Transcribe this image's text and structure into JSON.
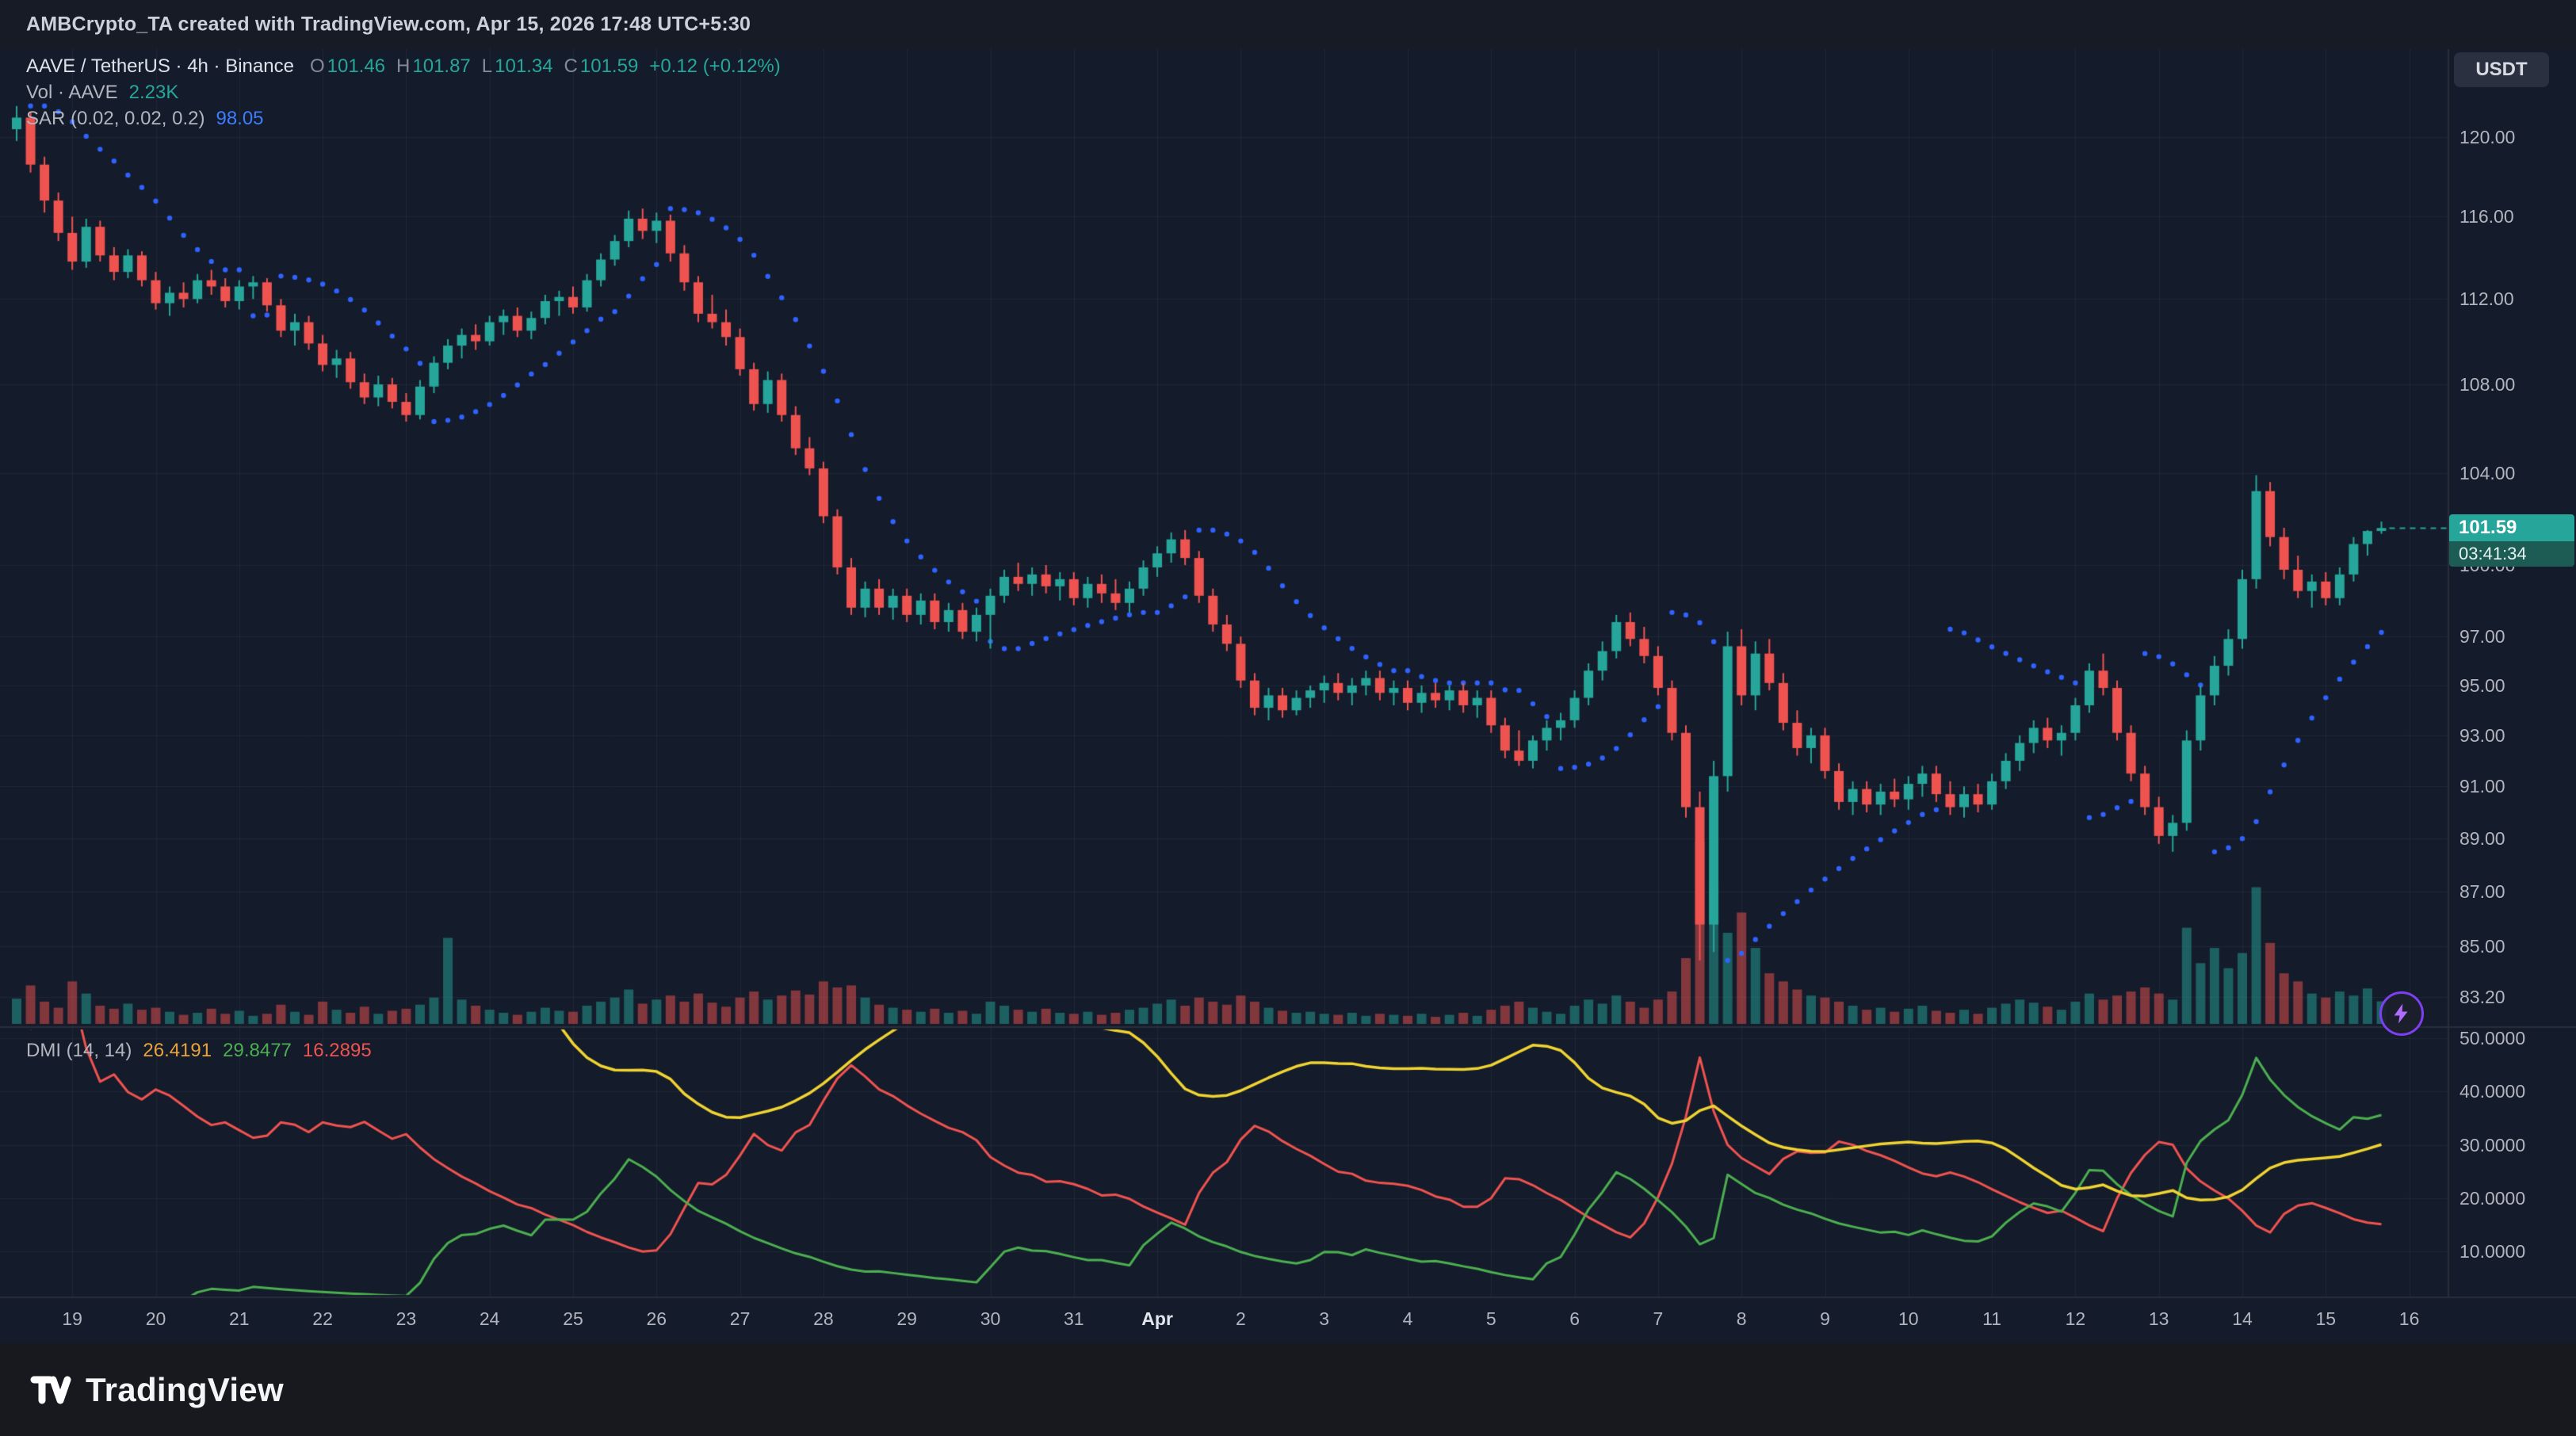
{
  "header": {
    "attribution": "AMBCrypto_TA created with TradingView.com, Apr 15, 2026 17:48 UTC+5:30"
  },
  "toolbar": {
    "currency_label": "USDT"
  },
  "legend": {
    "symbol": "AAVE / TetherUS · 4h · Binance",
    "o_label": "O",
    "o": "101.46",
    "h_label": "H",
    "h": "101.87",
    "l_label": "L",
    "l": "101.34",
    "c_label": "C",
    "c": "101.59",
    "change": "+0.12 (+0.12%)",
    "vol_label": "Vol · AAVE",
    "vol_value": "2.23K",
    "sar_label": "SAR (0.02, 0.02, 0.2)",
    "sar_value": "98.05",
    "dmi_label": "DMI (14, 14)",
    "dmi_adx": "26.4191",
    "dmi_plus": "29.8477",
    "dmi_minus": "16.2895"
  },
  "price_badge": {
    "price": "101.59",
    "countdown": "03:41:34"
  },
  "footer": {
    "brand": "TradingView"
  },
  "colors": {
    "background": "#141b2a",
    "header_bg": "#171b26",
    "footer_bg": "#17191e",
    "axis_text": "#b2b5be",
    "up": "#26a69a",
    "down": "#ef5350",
    "vol_up": "rgba(38,166,154,0.5)",
    "vol_down": "rgba(239,83,80,0.5)",
    "sar": "#2f62ff",
    "adx": "#f0d433",
    "plus_di": "#4caf50",
    "minus_di": "#ef5350",
    "grid": "rgba(134,146,172,0.10)",
    "sep": "#2a2e39",
    "badge_bg": "#26a69a",
    "badge_countdown_bg": "#1d5c55"
  },
  "chart_data": {
    "type": "candlestick",
    "title": "AAVE / TetherUS · 4h · Binance",
    "symbol": "AAVE/USDT",
    "exchange": "Binance",
    "interval": "4h",
    "price_scale": "logarithmic",
    "sub_panels": [
      "volume",
      "sar",
      "dmi"
    ],
    "current": {
      "open": 101.46,
      "high": 101.87,
      "low": 101.34,
      "close": 101.59,
      "change": "+0.12 (+0.12%)",
      "volume": "2.23K"
    },
    "sar": {
      "start": 0.02,
      "increment": 0.02,
      "max": 0.2,
      "value": 98.05
    },
    "dmi": {
      "length": 14,
      "adx_smoothing": 14,
      "adx": 26.4191,
      "plus_di": 29.8477,
      "minus_di": 16.2895
    },
    "price_axis_ticks": [
      {
        "label": "120.00",
        "value": 120
      },
      {
        "label": "116.00",
        "value": 116
      },
      {
        "label": "112.00",
        "value": 112
      },
      {
        "label": "108.00",
        "value": 108
      },
      {
        "label": "104.00",
        "value": 104
      },
      {
        "label": "100.00",
        "value": 100
      },
      {
        "label": "97.00",
        "value": 97
      },
      {
        "label": "95.00",
        "value": 95
      },
      {
        "label": "93.00",
        "value": 93
      },
      {
        "label": "91.00",
        "value": 91
      },
      {
        "label": "89.00",
        "value": 89
      },
      {
        "label": "87.00",
        "value": 87
      },
      {
        "label": "85.00",
        "value": 85
      },
      {
        "label": "83.20",
        "value": 83.2
      }
    ],
    "dmi_axis_ticks": [
      {
        "label": "50.0000",
        "value": 50
      },
      {
        "label": "40.0000",
        "value": 40
      },
      {
        "label": "30.0000",
        "value": 30
      },
      {
        "label": "20.0000",
        "value": 20
      },
      {
        "label": "10.0000",
        "value": 10
      }
    ],
    "time_ticks": [
      {
        "label": "19"
      },
      {
        "label": "20"
      },
      {
        "label": "21"
      },
      {
        "label": "22"
      },
      {
        "label": "23"
      },
      {
        "label": "24"
      },
      {
        "label": "25"
      },
      {
        "label": "26"
      },
      {
        "label": "27"
      },
      {
        "label": "28"
      },
      {
        "label": "29"
      },
      {
        "label": "30"
      },
      {
        "label": "31"
      },
      {
        "label": "Apr",
        "major": true
      },
      {
        "label": "2"
      },
      {
        "label": "3"
      },
      {
        "label": "4"
      },
      {
        "label": "5"
      },
      {
        "label": "6"
      },
      {
        "label": "7"
      },
      {
        "label": "8"
      },
      {
        "label": "9"
      },
      {
        "label": "10"
      },
      {
        "label": "11"
      },
      {
        "label": "12"
      },
      {
        "label": "13"
      },
      {
        "label": "14"
      },
      {
        "label": "15"
      },
      {
        "label": "16"
      }
    ],
    "ohlc": [
      [
        120.4,
        121.6,
        119.8,
        121.0
      ],
      [
        121.0,
        121.3,
        118.2,
        118.6
      ],
      [
        118.6,
        119.0,
        116.2,
        116.8
      ],
      [
        116.8,
        117.2,
        114.8,
        115.2
      ],
      [
        115.2,
        116.0,
        113.4,
        113.8
      ],
      [
        113.8,
        115.9,
        113.5,
        115.5
      ],
      [
        115.5,
        115.8,
        113.8,
        114.1
      ],
      [
        114.1,
        114.5,
        112.9,
        113.3
      ],
      [
        113.3,
        114.4,
        113.0,
        114.1
      ],
      [
        114.1,
        114.3,
        112.6,
        112.9
      ],
      [
        112.9,
        113.3,
        111.5,
        111.8
      ],
      [
        111.8,
        112.6,
        111.2,
        112.3
      ],
      [
        112.3,
        112.8,
        111.6,
        112.0
      ],
      [
        112.0,
        113.2,
        111.8,
        112.9
      ],
      [
        112.9,
        113.4,
        112.2,
        112.6
      ],
      [
        112.6,
        113.0,
        111.6,
        111.9
      ],
      [
        111.9,
        112.9,
        111.5,
        112.6
      ],
      [
        112.6,
        113.1,
        112.0,
        112.8
      ],
      [
        112.8,
        113.0,
        111.4,
        111.7
      ],
      [
        111.7,
        112.0,
        110.2,
        110.5
      ],
      [
        110.5,
        111.3,
        109.8,
        110.9
      ],
      [
        110.9,
        111.2,
        109.6,
        109.9
      ],
      [
        109.9,
        110.3,
        108.6,
        108.9
      ],
      [
        108.9,
        109.6,
        108.3,
        109.2
      ],
      [
        109.2,
        109.5,
        107.8,
        108.1
      ],
      [
        108.1,
        108.5,
        107.1,
        107.4
      ],
      [
        107.4,
        108.4,
        107.0,
        108.0
      ],
      [
        108.0,
        108.3,
        106.9,
        107.2
      ],
      [
        107.2,
        107.6,
        106.3,
        106.6
      ],
      [
        106.6,
        108.2,
        106.4,
        107.9
      ],
      [
        107.9,
        109.3,
        107.6,
        109.0
      ],
      [
        109.0,
        110.1,
        108.7,
        109.8
      ],
      [
        109.8,
        110.6,
        109.2,
        110.3
      ],
      [
        110.3,
        110.8,
        109.6,
        110.0
      ],
      [
        110.0,
        111.2,
        109.8,
        110.9
      ],
      [
        110.9,
        111.5,
        110.3,
        111.2
      ],
      [
        111.2,
        111.6,
        110.2,
        110.5
      ],
      [
        110.5,
        111.4,
        110.1,
        111.1
      ],
      [
        111.1,
        112.2,
        110.8,
        111.9
      ],
      [
        111.9,
        112.4,
        111.2,
        112.1
      ],
      [
        112.1,
        112.6,
        111.3,
        111.6
      ],
      [
        111.6,
        113.2,
        111.4,
        112.9
      ],
      [
        112.9,
        114.2,
        112.6,
        113.9
      ],
      [
        113.9,
        115.1,
        113.6,
        114.8
      ],
      [
        114.8,
        116.3,
        114.5,
        115.9
      ],
      [
        115.9,
        116.4,
        114.9,
        115.3
      ],
      [
        115.3,
        116.2,
        114.7,
        115.8
      ],
      [
        115.8,
        116.1,
        113.8,
        114.2
      ],
      [
        114.2,
        114.6,
        112.4,
        112.8
      ],
      [
        112.8,
        113.1,
        110.9,
        111.3
      ],
      [
        111.3,
        112.2,
        110.6,
        110.9
      ],
      [
        110.9,
        111.5,
        109.8,
        110.2
      ],
      [
        110.2,
        110.6,
        108.4,
        108.7
      ],
      [
        108.7,
        109.0,
        106.8,
        107.1
      ],
      [
        107.1,
        108.6,
        106.7,
        108.2
      ],
      [
        108.2,
        108.5,
        106.3,
        106.6
      ],
      [
        106.6,
        107.0,
        104.8,
        105.1
      ],
      [
        105.1,
        105.6,
        103.9,
        104.2
      ],
      [
        104.2,
        104.5,
        101.8,
        102.1
      ],
      [
        102.1,
        102.4,
        99.6,
        99.9
      ],
      [
        99.9,
        100.3,
        97.9,
        98.2
      ],
      [
        98.2,
        99.3,
        97.8,
        99.0
      ],
      [
        99.0,
        99.4,
        97.9,
        98.2
      ],
      [
        98.2,
        99.0,
        97.7,
        98.7
      ],
      [
        98.7,
        99.0,
        97.6,
        97.9
      ],
      [
        97.9,
        98.8,
        97.5,
        98.5
      ],
      [
        98.5,
        98.8,
        97.3,
        97.6
      ],
      [
        97.6,
        98.4,
        97.2,
        98.1
      ],
      [
        98.1,
        98.4,
        96.9,
        97.2
      ],
      [
        97.2,
        98.2,
        96.8,
        97.9
      ],
      [
        97.9,
        99.0,
        96.5,
        98.7
      ],
      [
        98.7,
        99.8,
        98.4,
        99.5
      ],
      [
        99.5,
        100.1,
        98.9,
        99.2
      ],
      [
        99.2,
        99.9,
        98.7,
        99.6
      ],
      [
        99.6,
        100.0,
        98.8,
        99.1
      ],
      [
        99.1,
        99.7,
        98.5,
        99.4
      ],
      [
        99.4,
        99.7,
        98.3,
        98.6
      ],
      [
        98.6,
        99.5,
        98.2,
        99.2
      ],
      [
        99.2,
        99.6,
        98.4,
        98.8
      ],
      [
        98.8,
        99.4,
        98.1,
        98.4
      ],
      [
        98.4,
        99.3,
        98.0,
        99.0
      ],
      [
        99.0,
        100.2,
        98.7,
        99.9
      ],
      [
        99.9,
        100.8,
        99.5,
        100.5
      ],
      [
        100.5,
        101.4,
        100.1,
        101.1
      ],
      [
        101.1,
        101.5,
        100.0,
        100.3
      ],
      [
        100.3,
        100.6,
        98.4,
        98.7
      ],
      [
        98.7,
        99.0,
        97.2,
        97.5
      ],
      [
        97.5,
        97.9,
        96.4,
        96.7
      ],
      [
        96.7,
        97.0,
        94.9,
        95.2
      ],
      [
        95.2,
        95.5,
        93.8,
        94.1
      ],
      [
        94.1,
        94.9,
        93.6,
        94.6
      ],
      [
        94.6,
        94.9,
        93.7,
        94.0
      ],
      [
        94.0,
        94.8,
        93.8,
        94.5
      ],
      [
        94.5,
        95.0,
        94.1,
        94.8
      ],
      [
        94.8,
        95.4,
        94.3,
        95.1
      ],
      [
        95.1,
        95.5,
        94.4,
        94.7
      ],
      [
        94.7,
        95.3,
        94.2,
        95.0
      ],
      [
        95.0,
        95.6,
        94.6,
        95.3
      ],
      [
        95.3,
        95.6,
        94.4,
        94.7
      ],
      [
        94.7,
        95.2,
        94.2,
        94.9
      ],
      [
        94.9,
        95.2,
        94.0,
        94.3
      ],
      [
        94.3,
        95.0,
        93.9,
        94.7
      ],
      [
        94.7,
        95.1,
        94.1,
        94.4
      ],
      [
        94.4,
        95.0,
        94.0,
        94.8
      ],
      [
        94.8,
        95.1,
        93.9,
        94.2
      ],
      [
        94.2,
        94.8,
        93.7,
        94.5
      ],
      [
        94.5,
        94.8,
        93.1,
        93.4
      ],
      [
        93.4,
        93.7,
        92.1,
        92.4
      ],
      [
        92.4,
        93.2,
        91.8,
        92.0
      ],
      [
        92.0,
        93.0,
        91.7,
        92.8
      ],
      [
        92.8,
        93.6,
        92.4,
        93.3
      ],
      [
        93.3,
        93.9,
        92.8,
        93.6
      ],
      [
        93.6,
        94.8,
        93.3,
        94.5
      ],
      [
        94.5,
        95.9,
        94.2,
        95.6
      ],
      [
        95.6,
        96.8,
        95.2,
        96.4
      ],
      [
        96.4,
        97.9,
        96.1,
        97.6
      ],
      [
        97.6,
        98.0,
        96.6,
        96.9
      ],
      [
        96.9,
        97.4,
        95.9,
        96.2
      ],
      [
        96.2,
        96.6,
        94.6,
        94.9
      ],
      [
        94.9,
        95.2,
        92.8,
        93.1
      ],
      [
        93.1,
        93.4,
        89.8,
        90.2
      ],
      [
        90.2,
        90.8,
        84.5,
        85.8
      ],
      [
        85.8,
        92.0,
        84.8,
        91.4
      ],
      [
        91.4,
        97.2,
        90.8,
        96.6
      ],
      [
        96.6,
        97.3,
        94.2,
        94.6
      ],
      [
        94.6,
        96.8,
        94.0,
        96.3
      ],
      [
        96.3,
        96.9,
        94.8,
        95.1
      ],
      [
        95.1,
        95.5,
        93.2,
        93.5
      ],
      [
        93.5,
        94.0,
        92.2,
        92.5
      ],
      [
        92.5,
        93.3,
        91.9,
        93.0
      ],
      [
        93.0,
        93.3,
        91.3,
        91.6
      ],
      [
        91.6,
        91.9,
        90.1,
        90.4
      ],
      [
        90.4,
        91.2,
        89.9,
        90.9
      ],
      [
        90.9,
        91.2,
        90.0,
        90.3
      ],
      [
        90.3,
        91.1,
        89.9,
        90.8
      ],
      [
        90.8,
        91.3,
        90.2,
        90.5
      ],
      [
        90.5,
        91.4,
        90.1,
        91.1
      ],
      [
        91.1,
        91.8,
        90.6,
        91.5
      ],
      [
        91.5,
        91.8,
        90.4,
        90.7
      ],
      [
        90.7,
        91.2,
        89.9,
        90.2
      ],
      [
        90.2,
        91.0,
        89.8,
        90.7
      ],
      [
        90.7,
        91.1,
        90.0,
        90.3
      ],
      [
        90.3,
        91.5,
        90.1,
        91.2
      ],
      [
        91.2,
        92.3,
        90.9,
        92.0
      ],
      [
        92.0,
        93.0,
        91.6,
        92.7
      ],
      [
        92.7,
        93.6,
        92.3,
        93.3
      ],
      [
        93.3,
        93.7,
        92.5,
        92.8
      ],
      [
        92.8,
        93.4,
        92.2,
        93.1
      ],
      [
        93.1,
        94.5,
        92.8,
        94.2
      ],
      [
        94.2,
        95.9,
        93.9,
        95.6
      ],
      [
        95.6,
        96.3,
        94.6,
        94.9
      ],
      [
        94.9,
        95.2,
        92.8,
        93.1
      ],
      [
        93.1,
        93.4,
        91.2,
        91.5
      ],
      [
        91.5,
        91.8,
        89.9,
        90.2
      ],
      [
        90.2,
        90.6,
        88.8,
        89.1
      ],
      [
        89.1,
        89.9,
        88.5,
        89.6
      ],
      [
        89.6,
        93.2,
        89.3,
        92.8
      ],
      [
        92.8,
        95.0,
        92.4,
        94.6
      ],
      [
        94.6,
        96.2,
        94.2,
        95.8
      ],
      [
        95.8,
        97.3,
        95.4,
        96.9
      ],
      [
        96.9,
        99.8,
        96.5,
        99.4
      ],
      [
        99.4,
        103.9,
        99.0,
        103.2
      ],
      [
        103.2,
        103.6,
        100.8,
        101.2
      ],
      [
        101.2,
        101.6,
        99.4,
        99.8
      ],
      [
        99.8,
        100.4,
        98.6,
        98.9
      ],
      [
        98.9,
        99.6,
        98.2,
        99.3
      ],
      [
        99.3,
        99.7,
        98.3,
        98.6
      ],
      [
        98.6,
        99.9,
        98.3,
        99.6
      ],
      [
        99.6,
        101.2,
        99.3,
        100.9
      ],
      [
        100.9,
        101.5,
        100.4,
        101.46
      ],
      [
        101.46,
        101.87,
        101.34,
        101.59
      ]
    ],
    "volume": [
      2.5,
      3.8,
      2.2,
      1.6,
      4.2,
      3.0,
      1.8,
      1.5,
      2.0,
      1.4,
      1.6,
      1.2,
      0.9,
      1.1,
      1.5,
      1.0,
      1.3,
      0.8,
      1.0,
      1.9,
      1.2,
      0.9,
      2.2,
      1.4,
      1.1,
      1.7,
      1.0,
      1.3,
      1.5,
      1.9,
      2.6,
      8.5,
      2.4,
      1.8,
      1.4,
      1.1,
      0.9,
      1.2,
      1.6,
      1.3,
      1.2,
      1.8,
      2.2,
      2.6,
      3.4,
      2.0,
      2.4,
      2.8,
      2.2,
      3.0,
      2.1,
      1.7,
      2.6,
      3.2,
      2.4,
      2.8,
      3.3,
      2.9,
      4.2,
      3.6,
      3.8,
      2.6,
      1.9,
      1.6,
      1.4,
      1.2,
      1.5,
      1.1,
      1.3,
      1.0,
      2.2,
      1.8,
      1.4,
      1.2,
      1.5,
      1.1,
      1.0,
      1.2,
      0.9,
      1.1,
      1.4,
      1.6,
      2.0,
      2.4,
      1.8,
      2.6,
      2.2,
      1.9,
      2.8,
      2.2,
      1.6,
      1.3,
      1.1,
      1.2,
      1.0,
      0.9,
      1.1,
      0.8,
      1.0,
      0.9,
      0.8,
      1.0,
      0.7,
      0.9,
      1.1,
      0.8,
      1.4,
      1.8,
      2.2,
      1.6,
      1.2,
      1.0,
      1.8,
      2.4,
      2.0,
      2.8,
      2.2,
      1.6,
      2.4,
      3.2,
      6.5,
      18.0,
      14.0,
      9.0,
      11.0,
      7.5,
      5.0,
      4.2,
      3.4,
      2.8,
      2.6,
      2.2,
      1.8,
      1.4,
      1.6,
      1.2,
      1.5,
      1.8,
      1.3,
      1.1,
      1.4,
      1.0,
      1.6,
      2.0,
      2.4,
      2.1,
      1.7,
      1.4,
      2.2,
      3.0,
      2.4,
      2.8,
      3.2,
      3.6,
      3.0,
      2.4,
      9.5,
      6.0,
      7.5,
      5.5,
      7.0,
      13.5,
      8.0,
      5.0,
      4.2,
      3.0,
      2.6,
      3.2,
      2.8,
      3.5,
      2.23
    ]
  }
}
